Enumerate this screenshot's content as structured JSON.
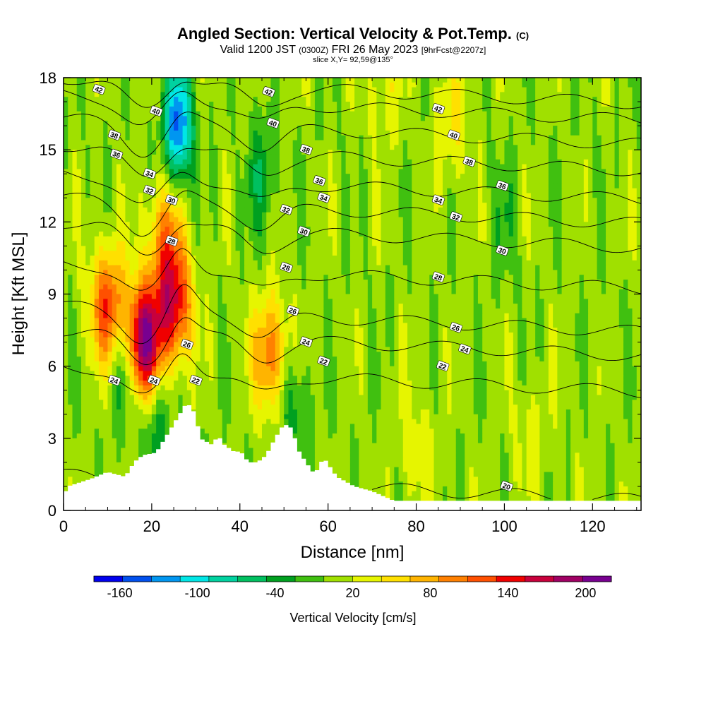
{
  "header": {
    "title_main": "Angled Section: Vertical Velocity & Pot.Temp.",
    "title_unit": "(C)",
    "subtitle_a": "Valid 1200 JST",
    "subtitle_b": "(0300Z)",
    "subtitle_c": "FRI 26 May 2023",
    "subtitle_d": "[9hrFcst@2207z]",
    "slice_line": "slice X,Y= 92,59@135°"
  },
  "chart_data": {
    "type": "heatmap",
    "xlabel": "Distance [nm]",
    "ylabel": "Height [Kft MSL]",
    "xlim": [
      0,
      131
    ],
    "ylim": [
      0,
      18
    ],
    "x_ticks": [
      0,
      20,
      40,
      60,
      80,
      100,
      120
    ],
    "y_ticks": [
      0,
      3,
      6,
      9,
      12,
      15,
      18
    ],
    "grid": false,
    "colorbar": {
      "label": "Vertical Velocity [cm/s]",
      "min": -180,
      "max": 220,
      "tick_values": [
        -160,
        -100,
        -40,
        20,
        80,
        140,
        200
      ],
      "colors": [
        "#0000ee",
        "#0050ee",
        "#0096f0",
        "#00e6e6",
        "#00d2a0",
        "#00c060",
        "#00a020",
        "#40c010",
        "#a0e000",
        "#e6f500",
        "#ffe000",
        "#ffb400",
        "#ff8000",
        "#ff5000",
        "#f00000",
        "#c8003c",
        "#a00064",
        "#780090"
      ]
    },
    "background_velocity_cm_s": 5,
    "updrafts": [
      {
        "x": 18,
        "y": 7.0,
        "peak_cm_s": 200
      },
      {
        "x": 10,
        "y": 8.5,
        "peak_cm_s": 120
      },
      {
        "x": 25,
        "y": 8.5,
        "peak_cm_s": 150
      },
      {
        "x": 47,
        "y": 6.5,
        "peak_cm_s": 100
      },
      {
        "x": 23,
        "y": 11.5,
        "peak_cm_s": 80
      },
      {
        "x": 88,
        "y": 16.0,
        "peak_cm_s": 40
      },
      {
        "x": 73,
        "y": 17.5,
        "peak_cm_s": 30
      },
      {
        "x": 80,
        "y": 2.5,
        "peak_cm_s": 30
      },
      {
        "x": 106,
        "y": 3.0,
        "peak_cm_s": 25
      }
    ],
    "downdrafts": [
      {
        "x": 26,
        "y": 16.0,
        "peak_cm_s": -150
      },
      {
        "x": 14,
        "y": 6.0,
        "peak_cm_s": -60
      },
      {
        "x": 21,
        "y": 3.5,
        "peak_cm_s": -50
      },
      {
        "x": 45,
        "y": 14.0,
        "peak_cm_s": -45
      },
      {
        "x": 52,
        "y": 4.5,
        "peak_cm_s": -45
      },
      {
        "x": 100,
        "y": 12.0,
        "peak_cm_s": -25
      }
    ],
    "terrain_kft": {
      "x": [
        0,
        1,
        6,
        10,
        14,
        16,
        18,
        21,
        28,
        30,
        31,
        34,
        35,
        36,
        39,
        40,
        42,
        44,
        46,
        48,
        50,
        52,
        53,
        55,
        57,
        59,
        62,
        66,
        70,
        75,
        131
      ],
      "y": [
        0.6,
        1.0,
        1.3,
        1.6,
        1.4,
        2.0,
        2.3,
        2.4,
        4.5,
        4.0,
        3.0,
        2.7,
        3.2,
        2.8,
        2.4,
        2.5,
        2.0,
        2.0,
        2.3,
        3.0,
        3.6,
        3.4,
        2.6,
        2.0,
        1.5,
        2.2,
        1.4,
        1.0,
        0.8,
        0.4,
        0.4
      ]
    },
    "isentropes": {
      "levels": [
        20,
        22,
        24,
        26,
        28,
        30,
        32,
        34,
        36,
        38,
        40,
        42
      ],
      "base_height_kft": [
        1.0,
        5.5,
        7.0,
        8.0,
        9.8,
        11.5,
        12.5,
        13.5,
        14.7,
        15.8,
        16.8,
        17.5
      ],
      "labels": [
        {
          "text": "42",
          "x": 8,
          "y": 17.5
        },
        {
          "text": "40",
          "x": 21,
          "y": 16.6
        },
        {
          "text": "38",
          "x": 11.5,
          "y": 15.6
        },
        {
          "text": "36",
          "x": 12,
          "y": 14.8
        },
        {
          "text": "34",
          "x": 19.5,
          "y": 14.0
        },
        {
          "text": "32",
          "x": 19.5,
          "y": 13.3
        },
        {
          "text": "30",
          "x": 24.5,
          "y": 12.9
        },
        {
          "text": "28",
          "x": 24.5,
          "y": 11.2
        },
        {
          "text": "26",
          "x": 28,
          "y": 6.9
        },
        {
          "text": "24",
          "x": 11.5,
          "y": 5.4
        },
        {
          "text": "24",
          "x": 20.5,
          "y": 5.4
        },
        {
          "text": "22",
          "x": 30,
          "y": 5.4
        },
        {
          "text": "42",
          "x": 46.5,
          "y": 17.4
        },
        {
          "text": "40",
          "x": 47.5,
          "y": 16.1
        },
        {
          "text": "38",
          "x": 55,
          "y": 15.0
        },
        {
          "text": "36",
          "x": 58,
          "y": 13.7
        },
        {
          "text": "34",
          "x": 59,
          "y": 13.0
        },
        {
          "text": "32",
          "x": 50.5,
          "y": 12.5
        },
        {
          "text": "30",
          "x": 54.5,
          "y": 11.6
        },
        {
          "text": "28",
          "x": 50.5,
          "y": 10.1
        },
        {
          "text": "26",
          "x": 52,
          "y": 8.3
        },
        {
          "text": "24",
          "x": 55,
          "y": 7.0
        },
        {
          "text": "22",
          "x": 59,
          "y": 6.2
        },
        {
          "text": "42",
          "x": 85,
          "y": 16.7
        },
        {
          "text": "40",
          "x": 88.5,
          "y": 15.6
        },
        {
          "text": "38",
          "x": 92,
          "y": 14.5
        },
        {
          "text": "36",
          "x": 99.5,
          "y": 13.5
        },
        {
          "text": "34",
          "x": 85,
          "y": 12.9
        },
        {
          "text": "32",
          "x": 89,
          "y": 12.2
        },
        {
          "text": "30",
          "x": 99.5,
          "y": 10.8
        },
        {
          "text": "28",
          "x": 85,
          "y": 9.7
        },
        {
          "text": "26",
          "x": 89,
          "y": 7.6
        },
        {
          "text": "24",
          "x": 91,
          "y": 6.7
        },
        {
          "text": "22",
          "x": 86,
          "y": 6.0
        },
        {
          "text": "20",
          "x": 100.5,
          "y": 1.0
        }
      ]
    }
  }
}
